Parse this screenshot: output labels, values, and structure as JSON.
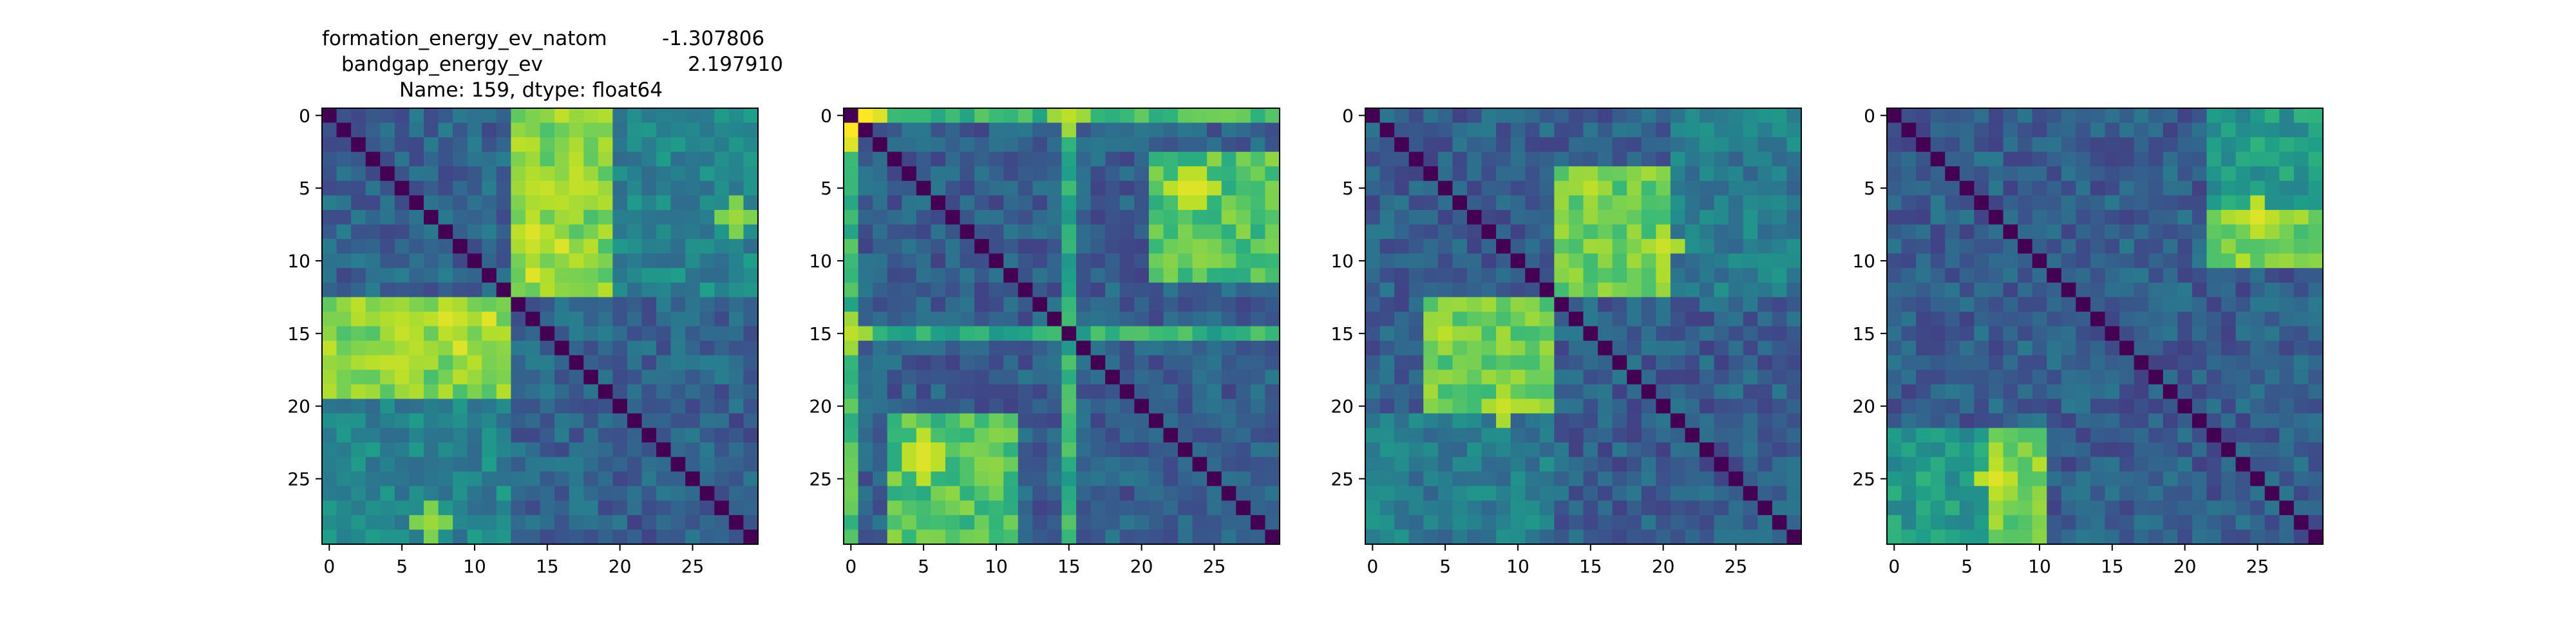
{
  "figure_title": {
    "line1_label": "formation_energy_ev_natom",
    "line1_value": "-1.307806",
    "line2_label": "bandgap_energy_ev",
    "line2_value": "2.197910",
    "line3": "Name: 159, dtype: float64"
  },
  "chart_data": [
    {
      "type": "heatmap",
      "size": 30,
      "colormap": "viridis",
      "diagonal_value": 0,
      "xticks": [
        0,
        5,
        10,
        15,
        20,
        25
      ],
      "yticks": [
        0,
        5,
        10,
        15,
        20,
        25
      ],
      "background": 0.32,
      "blocks": [
        {
          "rows": [
            13,
            19
          ],
          "cols": [
            0,
            12
          ],
          "value": 0.8
        },
        {
          "rows": [
            0,
            12
          ],
          "cols": [
            13,
            19
          ],
          "value": 0.8
        },
        {
          "rows": [
            4,
            12
          ],
          "cols": [
            13,
            16
          ],
          "value": 0.86
        },
        {
          "rows": [
            20,
            29
          ],
          "cols": [
            0,
            12
          ],
          "value": 0.45
        },
        {
          "rows": [
            0,
            12
          ],
          "cols": [
            20,
            29
          ],
          "value": 0.45
        },
        {
          "rows": [
            20,
            29
          ],
          "cols": [
            20,
            29
          ],
          "value": 0.3
        }
      ],
      "peaks": [
        {
          "r": 14,
          "c": 5,
          "value": 0.9
        },
        {
          "r": 14,
          "c": 9,
          "value": 0.92
        },
        {
          "r": 8,
          "c": 14,
          "value": 0.95
        },
        {
          "r": 7,
          "c": 28,
          "value": 0.85
        },
        {
          "r": 18,
          "c": 5,
          "value": 0.9
        }
      ]
    },
    {
      "type": "heatmap",
      "size": 30,
      "colormap": "viridis",
      "diagonal_value": 0,
      "xticks": [
        0,
        5,
        10,
        15,
        20,
        25
      ],
      "yticks": [
        0,
        5,
        10,
        15,
        20,
        25
      ],
      "background": 0.3,
      "blocks": [
        {
          "rows": [
            21,
            29
          ],
          "cols": [
            3,
            11
          ],
          "value": 0.72
        },
        {
          "rows": [
            3,
            11
          ],
          "cols": [
            21,
            29
          ],
          "value": 0.72
        },
        {
          "rows": [
            15,
            15
          ],
          "cols": [
            0,
            29
          ],
          "value": 0.62
        },
        {
          "rows": [
            0,
            29
          ],
          "cols": [
            15,
            15
          ],
          "value": 0.62
        },
        {
          "rows": [
            0,
            0
          ],
          "cols": [
            3,
            8
          ],
          "value": 0.8
        },
        {
          "rows": [
            0,
            29
          ],
          "cols": [
            0,
            0
          ],
          "value": 0.68
        },
        {
          "rows": [
            0,
            0
          ],
          "cols": [
            0,
            29
          ],
          "value": 0.68
        }
      ],
      "peaks": [
        {
          "r": 24,
          "c": 5,
          "value": 0.95
        },
        {
          "r": 5,
          "c": 23,
          "value": 0.95
        },
        {
          "r": 0,
          "c": 1,
          "value": 1.0
        },
        {
          "r": 1,
          "c": 0,
          "value": 1.0
        },
        {
          "r": 15,
          "c": 0,
          "value": 0.9
        },
        {
          "r": 0,
          "c": 15,
          "value": 0.9
        }
      ]
    },
    {
      "type": "heatmap",
      "size": 30,
      "colormap": "viridis",
      "diagonal_value": 0,
      "xticks": [
        0,
        5,
        10,
        15,
        20,
        25
      ],
      "yticks": [
        0,
        5,
        10,
        15,
        20,
        25
      ],
      "background": 0.3,
      "blocks": [
        {
          "rows": [
            13,
            20
          ],
          "cols": [
            4,
            12
          ],
          "value": 0.78
        },
        {
          "rows": [
            4,
            12
          ],
          "cols": [
            13,
            20
          ],
          "value": 0.78
        },
        {
          "rows": [
            21,
            29
          ],
          "cols": [
            0,
            12
          ],
          "value": 0.42
        },
        {
          "rows": [
            0,
            12
          ],
          "cols": [
            21,
            29
          ],
          "value": 0.42
        }
      ],
      "peaks": [
        {
          "r": 15,
          "c": 5,
          "value": 0.9
        },
        {
          "r": 5,
          "c": 15,
          "value": 0.9
        },
        {
          "r": 20,
          "c": 9,
          "value": 0.92
        },
        {
          "r": 9,
          "c": 20,
          "value": 0.92
        }
      ]
    },
    {
      "type": "heatmap",
      "size": 30,
      "colormap": "viridis",
      "diagonal_value": 0,
      "xticks": [
        0,
        5,
        10,
        15,
        20,
        25
      ],
      "yticks": [
        0,
        5,
        10,
        15,
        20,
        25
      ],
      "background": 0.3,
      "blocks": [
        {
          "rows": [
            22,
            29
          ],
          "cols": [
            7,
            10
          ],
          "value": 0.85
        },
        {
          "rows": [
            22,
            29
          ],
          "cols": [
            0,
            6
          ],
          "value": 0.6
        },
        {
          "rows": [
            7,
            10
          ],
          "cols": [
            22,
            29
          ],
          "value": 0.8
        },
        {
          "rows": [
            0,
            6
          ],
          "cols": [
            22,
            29
          ],
          "value": 0.55
        }
      ],
      "peaks": [
        {
          "r": 25,
          "c": 7,
          "value": 0.95
        },
        {
          "r": 7,
          "c": 25,
          "value": 0.95
        }
      ]
    }
  ]
}
